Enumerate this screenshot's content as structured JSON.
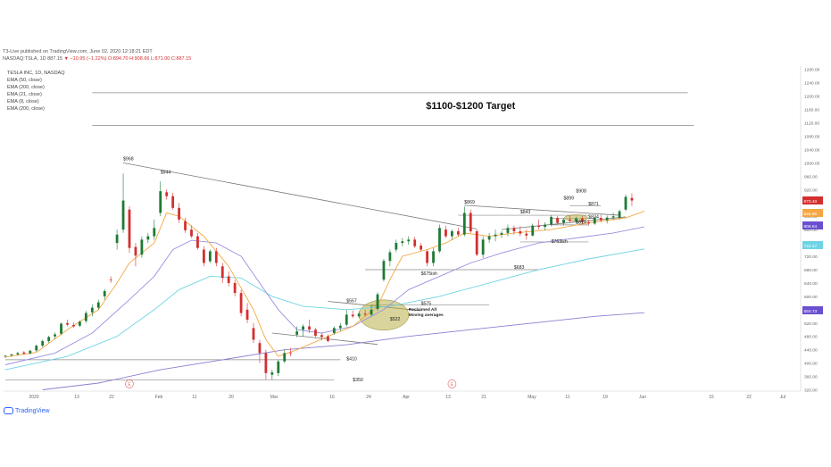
{
  "header": {
    "line1": "T3-Live published on TradingView.com, June 02, 2020 12:18:21 EDT",
    "line2_prefix": "NASDAQ:TSLA, 1D  887.15",
    "line2_change": " ▼ −10.95 (−1.22%) O:894.70 H:908.66 L:871.00 C:887.15"
  },
  "legend": {
    "items": [
      "TESLA INC, 1D, NASDAQ",
      "EMA (50, close)",
      "EMA (200, close)",
      "EMA (21, close)",
      "EMA (8, close)",
      "EMA (200, close)"
    ]
  },
  "footer": {
    "brand": "TradingView"
  },
  "colors": {
    "up": "#1e7a34",
    "down": "#d32f2f",
    "ema8": "#f5a742",
    "ema21": "#9c8fe0",
    "ema50": "#6fd3e3",
    "ema200": "#8e7ed0",
    "trendline": "#7a7a7a",
    "highlight": "#b8b048"
  },
  "chart_data": {
    "type": "candlestick",
    "title": "$1100-$1200 Target",
    "symbol": "NASDAQ:TSLA",
    "interval": "1D",
    "ylim": [
      316,
      1290
    ],
    "y_ticks": [
      320,
      360,
      400,
      440,
      480,
      520,
      560,
      600,
      640,
      680,
      720,
      760,
      800,
      840,
      880,
      920,
      960,
      1000,
      1040,
      1080,
      1120,
      1160,
      1200,
      1240,
      1280
    ],
    "x_ticks": [
      "2020",
      "13",
      "22",
      "Feb",
      "11",
      "20",
      "Mar",
      "16",
      "24",
      "Apr",
      "13",
      "21",
      "May",
      "11",
      "19",
      "Jun",
      "15",
      "22",
      "Jul"
    ],
    "price_badges": [
      {
        "label": "870.40",
        "color": "#d32f2f"
      },
      {
        "label": "846.90",
        "color": "#f5a742"
      },
      {
        "label": "809.64",
        "color": "#6a4fd0"
      },
      {
        "label": "742.47",
        "color": "#6fd3e3"
      },
      {
        "label": "550.73",
        "color": "#6a4fd0"
      }
    ],
    "candles": [
      {
        "o": 420,
        "h": 424,
        "l": 415,
        "c": 422
      },
      {
        "o": 423,
        "h": 428,
        "l": 419,
        "c": 426
      },
      {
        "o": 426,
        "h": 434,
        "l": 422,
        "c": 430
      },
      {
        "o": 432,
        "h": 436,
        "l": 425,
        "c": 428
      },
      {
        "o": 429,
        "h": 440,
        "l": 426,
        "c": 437
      },
      {
        "o": 438,
        "h": 456,
        "l": 434,
        "c": 452
      },
      {
        "o": 452,
        "h": 470,
        "l": 448,
        "c": 466
      },
      {
        "o": 466,
        "h": 482,
        "l": 460,
        "c": 478
      },
      {
        "o": 480,
        "h": 492,
        "l": 472,
        "c": 486
      },
      {
        "o": 488,
        "h": 522,
        "l": 484,
        "c": 518
      },
      {
        "o": 520,
        "h": 530,
        "l": 510,
        "c": 515
      },
      {
        "o": 514,
        "h": 522,
        "l": 506,
        "c": 510
      },
      {
        "o": 512,
        "h": 528,
        "l": 508,
        "c": 524
      },
      {
        "o": 526,
        "h": 556,
        "l": 520,
        "c": 550
      },
      {
        "o": 552,
        "h": 576,
        "l": 540,
        "c": 566
      },
      {
        "o": 566,
        "h": 590,
        "l": 560,
        "c": 582
      },
      {
        "o": 600,
        "h": 622,
        "l": 590,
        "c": 616
      },
      {
        "o": 650,
        "h": 660,
        "l": 640,
        "c": 648
      },
      {
        "o": 760,
        "h": 800,
        "l": 740,
        "c": 785
      },
      {
        "o": 800,
        "h": 968,
        "l": 790,
        "c": 887
      },
      {
        "o": 860,
        "h": 870,
        "l": 730,
        "c": 745
      },
      {
        "o": 748,
        "h": 760,
        "l": 690,
        "c": 722
      },
      {
        "o": 725,
        "h": 780,
        "l": 715,
        "c": 770
      },
      {
        "o": 770,
        "h": 790,
        "l": 760,
        "c": 780
      },
      {
        "o": 780,
        "h": 830,
        "l": 770,
        "c": 805
      },
      {
        "o": 850,
        "h": 944,
        "l": 840,
        "c": 915
      },
      {
        "o": 912,
        "h": 920,
        "l": 890,
        "c": 900
      },
      {
        "o": 900,
        "h": 910,
        "l": 860,
        "c": 865
      },
      {
        "o": 865,
        "h": 880,
        "l": 820,
        "c": 830
      },
      {
        "o": 825,
        "h": 835,
        "l": 790,
        "c": 798
      },
      {
        "o": 800,
        "h": 812,
        "l": 775,
        "c": 780
      },
      {
        "o": 780,
        "h": 790,
        "l": 740,
        "c": 745
      },
      {
        "o": 740,
        "h": 750,
        "l": 690,
        "c": 700
      },
      {
        "o": 705,
        "h": 740,
        "l": 700,
        "c": 735
      },
      {
        "o": 735,
        "h": 745,
        "l": 690,
        "c": 700
      },
      {
        "o": 690,
        "h": 700,
        "l": 640,
        "c": 655
      },
      {
        "o": 660,
        "h": 675,
        "l": 630,
        "c": 640
      },
      {
        "o": 640,
        "h": 650,
        "l": 600,
        "c": 610
      },
      {
        "o": 610,
        "h": 620,
        "l": 540,
        "c": 550
      },
      {
        "o": 560,
        "h": 580,
        "l": 520,
        "c": 530
      },
      {
        "o": 505,
        "h": 520,
        "l": 460,
        "c": 470
      },
      {
        "o": 460,
        "h": 470,
        "l": 400,
        "c": 430
      },
      {
        "o": 430,
        "h": 440,
        "l": 350,
        "c": 370
      },
      {
        "o": 365,
        "h": 380,
        "l": 350,
        "c": 372
      },
      {
        "o": 370,
        "h": 410,
        "l": 361,
        "c": 405
      },
      {
        "o": 405,
        "h": 440,
        "l": 400,
        "c": 430
      },
      {
        "o": 430,
        "h": 445,
        "l": 420,
        "c": 428
      },
      {
        "o": 485,
        "h": 510,
        "l": 478,
        "c": 495
      },
      {
        "o": 500,
        "h": 516,
        "l": 480,
        "c": 510
      },
      {
        "o": 510,
        "h": 530,
        "l": 490,
        "c": 500
      },
      {
        "o": 500,
        "h": 506,
        "l": 475,
        "c": 482
      },
      {
        "o": 484,
        "h": 490,
        "l": 468,
        "c": 478
      },
      {
        "o": 480,
        "h": 486,
        "l": 462,
        "c": 466
      },
      {
        "o": 490,
        "h": 510,
        "l": 485,
        "c": 505
      },
      {
        "o": 505,
        "h": 520,
        "l": 496,
        "c": 512
      },
      {
        "o": 515,
        "h": 560,
        "l": 510,
        "c": 545
      },
      {
        "o": 545,
        "h": 558,
        "l": 535,
        "c": 540
      },
      {
        "o": 540,
        "h": 555,
        "l": 535,
        "c": 548
      },
      {
        "o": 548,
        "h": 560,
        "l": 540,
        "c": 545
      },
      {
        "o": 545,
        "h": 575,
        "l": 540,
        "c": 560
      },
      {
        "o": 562,
        "h": 612,
        "l": 556,
        "c": 606
      },
      {
        "o": 650,
        "h": 712,
        "l": 644,
        "c": 706
      },
      {
        "o": 706,
        "h": 740,
        "l": 690,
        "c": 732
      },
      {
        "o": 740,
        "h": 770,
        "l": 732,
        "c": 760
      },
      {
        "o": 760,
        "h": 775,
        "l": 750,
        "c": 765
      },
      {
        "o": 765,
        "h": 780,
        "l": 755,
        "c": 770
      },
      {
        "o": 770,
        "h": 778,
        "l": 745,
        "c": 750
      },
      {
        "o": 752,
        "h": 760,
        "l": 735,
        "c": 740
      },
      {
        "o": 735,
        "h": 740,
        "l": 690,
        "c": 700
      },
      {
        "o": 700,
        "h": 745,
        "l": 690,
        "c": 735
      },
      {
        "o": 735,
        "h": 815,
        "l": 730,
        "c": 805
      },
      {
        "o": 800,
        "h": 812,
        "l": 775,
        "c": 780
      },
      {
        "o": 780,
        "h": 800,
        "l": 770,
        "c": 795
      },
      {
        "o": 795,
        "h": 805,
        "l": 780,
        "c": 785
      },
      {
        "o": 785,
        "h": 869,
        "l": 780,
        "c": 850
      },
      {
        "o": 850,
        "h": 860,
        "l": 790,
        "c": 795
      },
      {
        "o": 795,
        "h": 800,
        "l": 720,
        "c": 725
      },
      {
        "o": 725,
        "h": 780,
        "l": 715,
        "c": 770
      },
      {
        "o": 770,
        "h": 790,
        "l": 760,
        "c": 780
      },
      {
        "o": 780,
        "h": 800,
        "l": 765,
        "c": 785
      },
      {
        "o": 785,
        "h": 795,
        "l": 775,
        "c": 790
      },
      {
        "o": 790,
        "h": 815,
        "l": 780,
        "c": 805
      },
      {
        "o": 805,
        "h": 812,
        "l": 785,
        "c": 795
      },
      {
        "o": 795,
        "h": 810,
        "l": 780,
        "c": 788
      },
      {
        "o": 788,
        "h": 800,
        "l": 770,
        "c": 782
      },
      {
        "o": 782,
        "h": 818,
        "l": 780,
        "c": 812
      },
      {
        "o": 812,
        "h": 830,
        "l": 800,
        "c": 808
      },
      {
        "o": 808,
        "h": 822,
        "l": 798,
        "c": 815
      },
      {
        "o": 815,
        "h": 843,
        "l": 810,
        "c": 838
      },
      {
        "o": 835,
        "h": 840,
        "l": 815,
        "c": 820
      },
      {
        "o": 820,
        "h": 835,
        "l": 812,
        "c": 830
      },
      {
        "o": 830,
        "h": 842,
        "l": 822,
        "c": 826
      },
      {
        "o": 826,
        "h": 838,
        "l": 818,
        "c": 833
      },
      {
        "o": 833,
        "h": 840,
        "l": 818,
        "c": 822
      },
      {
        "o": 822,
        "h": 830,
        "l": 812,
        "c": 818
      },
      {
        "o": 818,
        "h": 838,
        "l": 814,
        "c": 835
      },
      {
        "o": 835,
        "h": 845,
        "l": 822,
        "c": 828
      },
      {
        "o": 828,
        "h": 842,
        "l": 818,
        "c": 836
      },
      {
        "o": 836,
        "h": 850,
        "l": 828,
        "c": 840
      },
      {
        "o": 835,
        "h": 860,
        "l": 830,
        "c": 855
      },
      {
        "o": 860,
        "h": 905,
        "l": 855,
        "c": 898
      },
      {
        "o": 894.7,
        "h": 908.66,
        "l": 871,
        "c": 887.15
      }
    ],
    "ema8": [
      [
        0,
        418
      ],
      [
        5,
        432
      ],
      [
        10,
        500
      ],
      [
        15,
        560
      ],
      [
        18,
        640
      ],
      [
        20,
        700
      ],
      [
        24,
        760
      ],
      [
        26,
        850
      ],
      [
        28,
        840
      ],
      [
        32,
        780
      ],
      [
        36,
        690
      ],
      [
        40,
        560
      ],
      [
        42,
        470
      ],
      [
        44,
        420
      ],
      [
        47,
        440
      ],
      [
        52,
        480
      ],
      [
        56,
        510
      ],
      [
        60,
        570
      ],
      [
        62,
        650
      ],
      [
        64,
        720
      ],
      [
        68,
        740
      ],
      [
        71,
        760
      ],
      [
        74,
        790
      ],
      [
        78,
        780
      ],
      [
        82,
        790
      ],
      [
        88,
        800
      ],
      [
        94,
        820
      ],
      [
        100,
        835
      ],
      [
        103,
        855
      ]
    ],
    "ema21": [
      [
        0,
        395
      ],
      [
        8,
        430
      ],
      [
        14,
        490
      ],
      [
        20,
        590
      ],
      [
        24,
        660
      ],
      [
        27,
        740
      ],
      [
        30,
        768
      ],
      [
        34,
        760
      ],
      [
        38,
        720
      ],
      [
        41,
        640
      ],
      [
        44,
        560
      ],
      [
        47,
        500
      ],
      [
        51,
        490
      ],
      [
        56,
        510
      ],
      [
        61,
        560
      ],
      [
        65,
        620
      ],
      [
        70,
        660
      ],
      [
        75,
        700
      ],
      [
        80,
        730
      ],
      [
        86,
        760
      ],
      [
        92,
        775
      ],
      [
        98,
        790
      ],
      [
        103,
        808
      ]
    ],
    "ema50": [
      [
        0,
        380
      ],
      [
        10,
        420
      ],
      [
        18,
        480
      ],
      [
        24,
        560
      ],
      [
        28,
        620
      ],
      [
        33,
        660
      ],
      [
        38,
        655
      ],
      [
        43,
        600
      ],
      [
        48,
        570
      ],
      [
        55,
        560
      ],
      [
        62,
        570
      ],
      [
        70,
        600
      ],
      [
        78,
        640
      ],
      [
        86,
        680
      ],
      [
        94,
        712
      ],
      [
        103,
        742
      ]
    ],
    "ema200": [
      [
        6,
        320
      ],
      [
        15,
        340
      ],
      [
        25,
        380
      ],
      [
        35,
        410
      ],
      [
        45,
        440
      ],
      [
        55,
        455
      ],
      [
        65,
        480
      ],
      [
        75,
        500
      ],
      [
        85,
        520
      ],
      [
        95,
        540
      ],
      [
        103,
        551
      ]
    ],
    "trendlines": [
      {
        "label": "$968",
        "p1": [
          19,
          1000
        ],
        "p2": [
          76,
          802
        ]
      },
      {
        "label": "$869",
        "p1": [
          74,
          873
        ],
        "p2": [
          99,
          843
        ]
      },
      {
        "label": "",
        "p1": [
          80,
          800
        ],
        "p2": [
          100,
          838
        ]
      },
      {
        "label": "$557",
        "p1": [
          52,
          585
        ],
        "p2": [
          67,
          557
        ]
      },
      {
        "label": "",
        "p1": [
          43,
          490
        ],
        "p2": [
          60,
          456
        ]
      }
    ],
    "levels": [
      {
        "label": "$1100-$1200 Target",
        "y": 1210,
        "x0": 14,
        "x1": 110
      },
      {
        "label": "",
        "y": 1112,
        "x0": 14,
        "x1": 111
      },
      {
        "label": "$675ish",
        "y": 680,
        "x0": 58,
        "x1": 86
      },
      {
        "label": "$575",
        "y": 574,
        "x0": 59,
        "x1": 78
      },
      {
        "label": "$410",
        "y": 410,
        "x0": 0,
        "x1": 54
      },
      {
        "label": "$350",
        "y": 350,
        "x0": 0,
        "x1": 53
      },
      {
        "label": "$763ish",
        "y": 763,
        "x0": 83,
        "x1": 94
      },
      {
        "label": "$843",
        "y": 843,
        "x0": 73,
        "x1": 94
      },
      {
        "label": "$871",
        "y": 871,
        "x0": 91,
        "x1": 96
      },
      {
        "label": "$814",
        "y": 814,
        "x0": 88,
        "x1": 94
      },
      {
        "label": "$834",
        "y": 834,
        "x0": 88,
        "x1": 95
      }
    ],
    "annotations": [
      {
        "text": "$968",
        "i": 19,
        "y": 1008
      },
      {
        "text": "$944",
        "i": 25,
        "y": 968
      },
      {
        "text": "$869",
        "i": 74,
        "y": 878
      },
      {
        "text": "$908",
        "i": 92,
        "y": 912
      },
      {
        "text": "$899",
        "i": 90,
        "y": 890
      },
      {
        "text": "$871",
        "i": 94,
        "y": 872
      },
      {
        "text": "$843",
        "i": 83,
        "y": 848
      },
      {
        "text": "$814",
        "i": 92,
        "y": 818
      },
      {
        "text": "$834",
        "i": 94,
        "y": 834
      },
      {
        "text": "$763ish",
        "i": 88,
        "y": 760
      },
      {
        "text": "$683",
        "i": 82,
        "y": 682
      },
      {
        "text": "$675ish",
        "i": 67,
        "y": 664
      },
      {
        "text": "$575",
        "i": 67,
        "y": 574
      },
      {
        "text": "$557",
        "i": 55,
        "y": 582
      },
      {
        "text": "$522",
        "i": 62,
        "y": 528
      },
      {
        "text": "$410",
        "i": 55,
        "y": 408
      },
      {
        "text": "$350",
        "i": 56,
        "y": 346
      },
      {
        "text": "Reclaimed All",
        "i": 65,
        "y": 557
      },
      {
        "text": "Moving averages",
        "i": 65,
        "y": 541
      }
    ],
    "highlights": [
      {
        "i": 61,
        "y": 544,
        "rx": 28,
        "ry": 17
      },
      {
        "i": 92,
        "y": 835,
        "rx": 13,
        "ry": 3.5
      }
    ],
    "earnings_markers": [
      {
        "label": "E",
        "i": 20
      },
      {
        "label": "E",
        "i": 72
      }
    ]
  }
}
